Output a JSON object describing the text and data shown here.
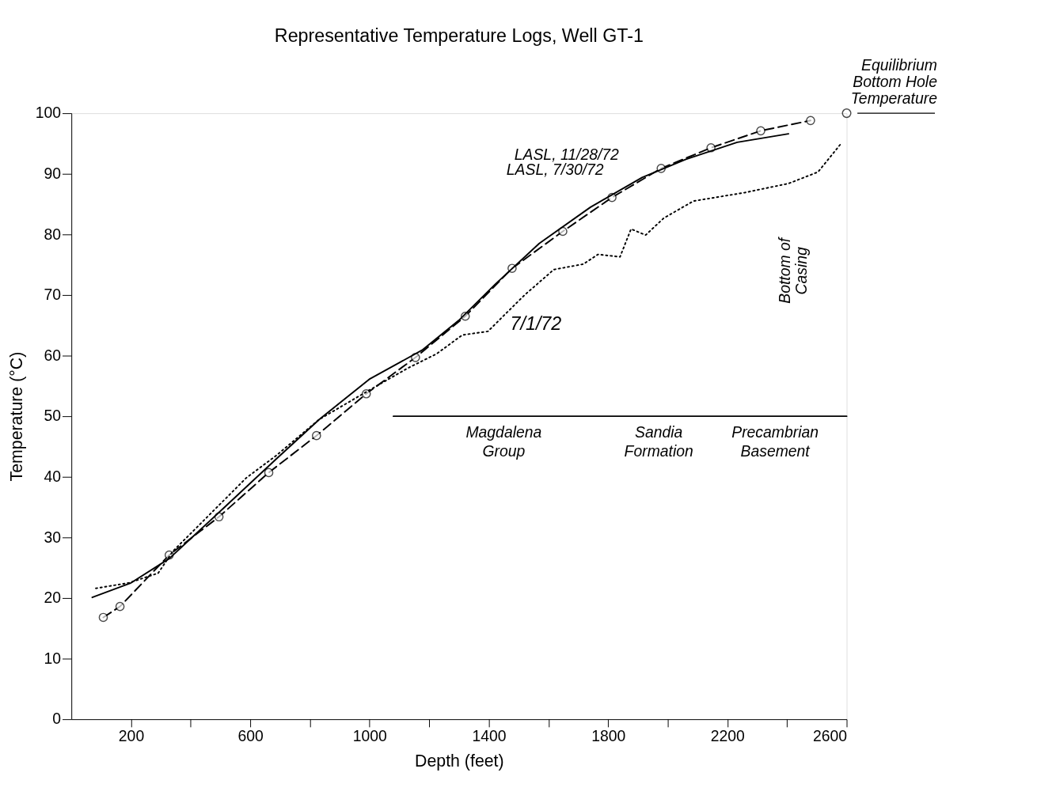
{
  "chart_data": {
    "type": "line",
    "title": "Representative Temperature Logs, Well GT-1",
    "xlabel": "Depth (feet)",
    "ylabel": "Temperature (°C)",
    "xlim": [
      0,
      2600
    ],
    "ylim": [
      0,
      100
    ],
    "xticks": [
      200,
      {
        "value": 400,
        "label": null
      },
      600,
      {
        "value": 800,
        "label": null
      },
      1000,
      {
        "value": 1200,
        "label": null
      },
      1400,
      {
        "value": 1600,
        "label": null
      },
      1800,
      {
        "value": 2000,
        "label": null
      },
      2200,
      {
        "value": 2400,
        "label": null
      },
      2600
    ],
    "yticks": [
      0,
      10,
      20,
      30,
      40,
      50,
      60,
      70,
      80,
      90,
      100
    ],
    "grid": false,
    "legend": false,
    "series": [
      {
        "name": "LASL, 11/28/72",
        "color": "#000000",
        "line_style": "dashed",
        "marker": "circle",
        "x": [
          107,
          163,
          328,
          495,
          662,
          822,
          989,
          1154,
          1321,
          1478,
          1648,
          1813,
          1978,
          2145,
          2312,
          2479
        ],
        "values": [
          16.8,
          18.6,
          27.1,
          33.4,
          40.7,
          46.8,
          53.7,
          59.7,
          66.5,
          74.4,
          80.5,
          86.1,
          90.9,
          94.3,
          97.1,
          98.8
        ]
      },
      {
        "name": "LASL, 7/30/72",
        "color": "#000000",
        "line_style": "solid",
        "marker": "none",
        "x": [
          70,
          200,
          328,
          512,
          684,
          832,
          999,
          1176,
          1299,
          1422,
          1569,
          1741,
          1914,
          2061,
          2233,
          2405
        ],
        "values": [
          20.1,
          22.5,
          26.5,
          34.9,
          42.8,
          49.5,
          56.1,
          60.9,
          65.8,
          71.8,
          78.5,
          84.5,
          89.4,
          92.4,
          95.2,
          96.6
        ]
      },
      {
        "name": "7/1/72",
        "color": "#000000",
        "line_style": "dotted",
        "marker": "none",
        "x": [
          82,
          193,
          291,
          340,
          438,
          586,
          684,
          832,
          999,
          1127,
          1225,
          1311,
          1397,
          1446,
          1520,
          1618,
          1717,
          1766,
          1840,
          1877,
          1926,
          1987,
          2086,
          2258,
          2405,
          2504,
          2578
        ],
        "values": [
          21.6,
          22.5,
          24.1,
          27.7,
          32.5,
          39.8,
          43.4,
          49.5,
          54.3,
          57.9,
          60.3,
          63.4,
          64.0,
          66.4,
          70.0,
          74.2,
          75.1,
          76.7,
          76.3,
          80.9,
          79.9,
          82.7,
          85.5,
          86.9,
          88.4,
          90.3,
          94.8
        ]
      },
      {
        "color": "#000000",
        "line_style": "solid",
        "marker": "none",
        "x": [
          1080,
          1820,
          2120,
          2600
        ],
        "values": [
          50,
          50,
          50,
          50
        ]
      }
    ],
    "annotations": [
      {
        "text": "Equilibrium Bottom Hole Temperature",
        "x": 2600,
        "y": 100
      },
      {
        "text": "Magdalena Group",
        "x": 1450,
        "y": 50
      },
      {
        "text": "Sandia Formation",
        "x": 1970,
        "y": 50
      },
      {
        "text": "Precambrian Basement",
        "x": 2360,
        "y": 50
      },
      "Bottom of Casing"
    ]
  }
}
